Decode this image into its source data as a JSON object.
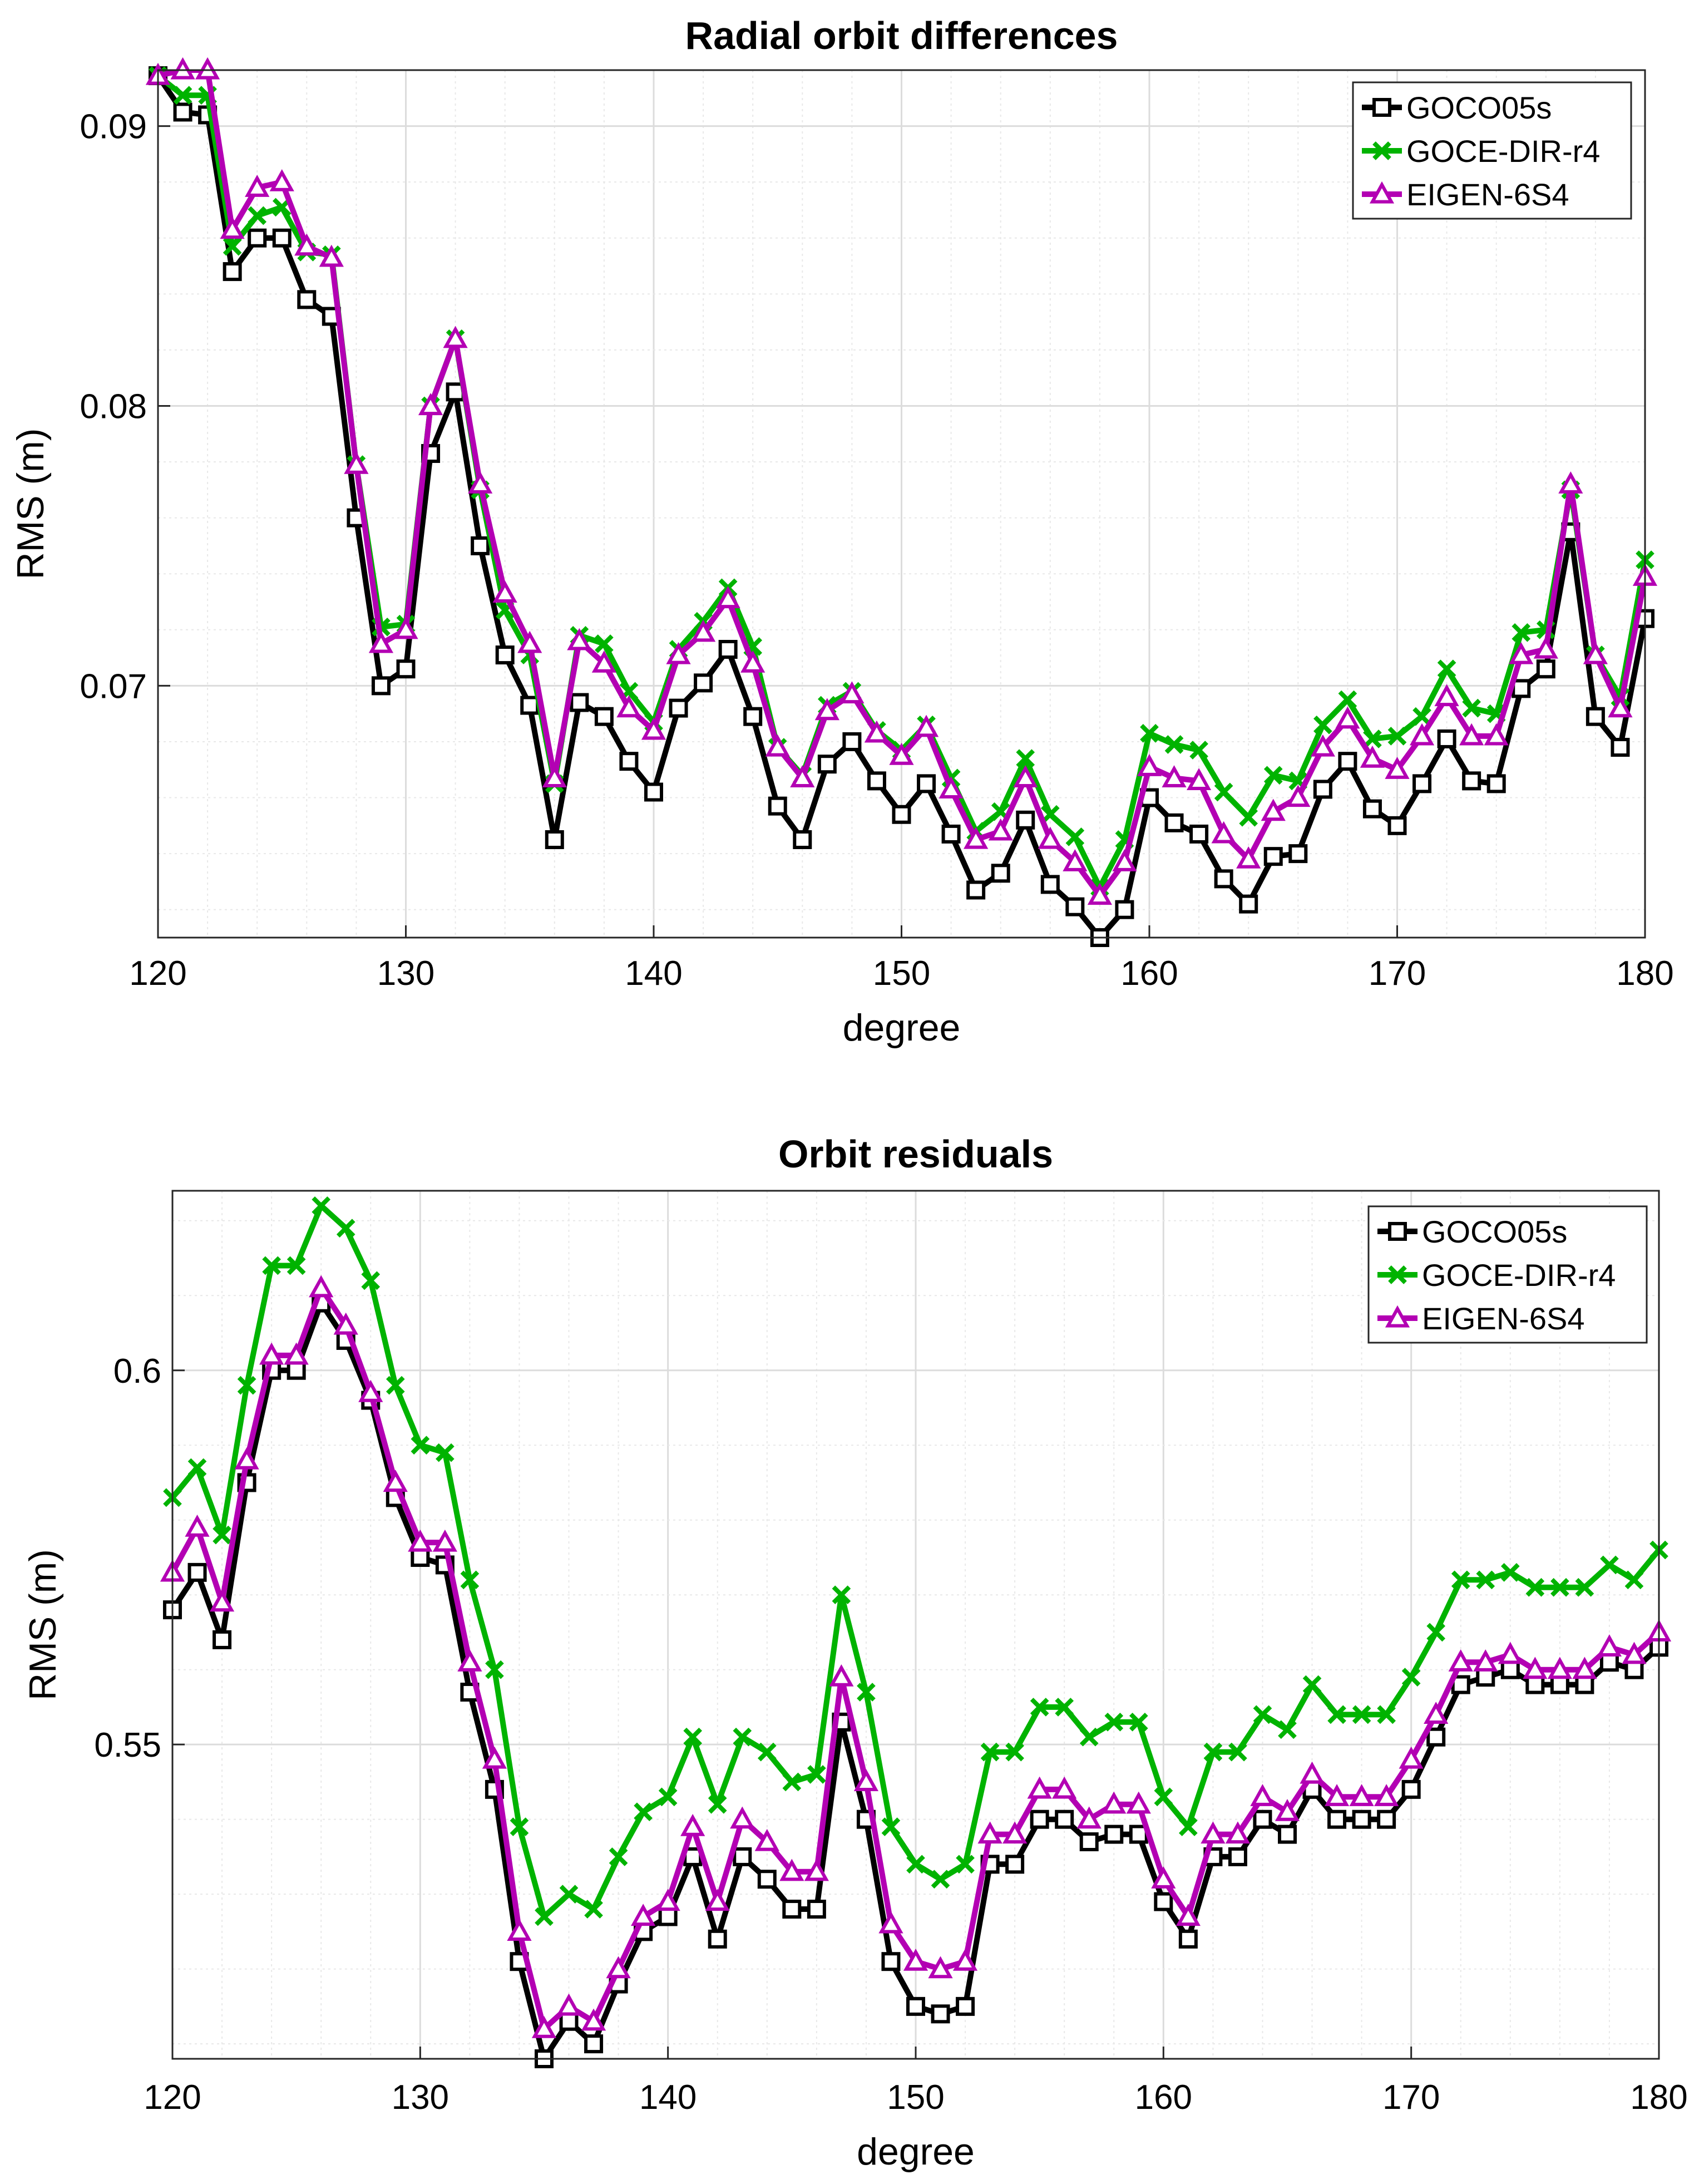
{
  "chart_data": [
    {
      "type": "line",
      "title": "Radial orbit differences",
      "xlabel": "degree",
      "ylabel": "RMS (m)",
      "xlim": [
        120,
        180
      ],
      "ylim": [
        0.061,
        0.092
      ],
      "xticks": [
        120,
        130,
        140,
        150,
        160,
        170,
        180
      ],
      "xtick_labels": [
        "120",
        "130",
        "140",
        "150",
        "160",
        "170",
        "180"
      ],
      "yticks": [
        0.07,
        0.08,
        0.09
      ],
      "ytick_labels": [
        "0.07",
        "0.08",
        "0.09"
      ],
      "grid": true,
      "legend_position": "top-right",
      "series": [
        {
          "name": "GOCO05s",
          "color": "#000000",
          "marker": "square",
          "x": [
            120,
            121,
            122,
            123,
            124,
            125,
            126,
            127,
            128,
            129,
            130,
            131,
            132,
            133,
            134,
            135,
            136,
            137,
            138,
            139,
            140,
            141,
            142,
            143,
            144,
            145,
            146,
            147,
            148,
            149,
            150,
            151,
            152,
            153,
            154,
            155,
            156,
            157,
            158,
            159,
            160,
            161,
            162,
            163,
            164,
            165,
            166,
            167,
            168,
            169,
            170,
            171,
            172,
            173,
            174,
            175,
            176,
            177,
            178,
            179,
            180
          ],
          "values": [
            0.0918,
            0.0905,
            0.0904,
            0.0848,
            0.086,
            0.086,
            0.0838,
            0.0832,
            0.076,
            0.07,
            0.0706,
            0.0783,
            0.0805,
            0.075,
            0.0711,
            0.0693,
            0.0645,
            0.0694,
            0.0689,
            0.0673,
            0.0662,
            0.0692,
            0.0701,
            0.0713,
            0.0689,
            0.0657,
            0.0645,
            0.0672,
            0.068,
            0.0666,
            0.0654,
            0.0665,
            0.0647,
            0.0627,
            0.0633,
            0.0652,
            0.0629,
            0.0621,
            0.061,
            0.062,
            0.066,
            0.0651,
            0.0647,
            0.0631,
            0.0622,
            0.0639,
            0.064,
            0.0663,
            0.0673,
            0.0656,
            0.065,
            0.0665,
            0.0681,
            0.0666,
            0.0665,
            0.0699,
            0.0706,
            0.0755,
            0.0689,
            0.0678,
            0.0724
          ]
        },
        {
          "name": "GOCE-DIR-r4",
          "color": "#00b300",
          "marker": "x",
          "x": [
            120,
            121,
            122,
            123,
            124,
            125,
            126,
            127,
            128,
            129,
            130,
            131,
            132,
            133,
            134,
            135,
            136,
            137,
            138,
            139,
            140,
            141,
            142,
            143,
            144,
            145,
            146,
            147,
            148,
            149,
            150,
            151,
            152,
            153,
            154,
            155,
            156,
            157,
            158,
            159,
            160,
            161,
            162,
            163,
            164,
            165,
            166,
            167,
            168,
            169,
            170,
            171,
            172,
            173,
            174,
            175,
            176,
            177,
            178,
            179,
            180
          ],
          "values": [
            0.0918,
            0.0911,
            0.0911,
            0.0857,
            0.0868,
            0.0871,
            0.0855,
            0.0854,
            0.0779,
            0.0721,
            0.0722,
            0.08,
            0.0824,
            0.077,
            0.0727,
            0.0711,
            0.0665,
            0.0718,
            0.0715,
            0.0698,
            0.0687,
            0.0713,
            0.0723,
            0.0735,
            0.0714,
            0.0678,
            0.0668,
            0.0693,
            0.0698,
            0.0684,
            0.0677,
            0.0686,
            0.0667,
            0.0648,
            0.0655,
            0.0674,
            0.0654,
            0.0646,
            0.0628,
            0.0645,
            0.0683,
            0.0679,
            0.0677,
            0.0662,
            0.0653,
            0.0668,
            0.0666,
            0.0686,
            0.0695,
            0.0681,
            0.0682,
            0.0689,
            0.0706,
            0.0692,
            0.069,
            0.0719,
            0.072,
            0.077,
            0.0711,
            0.0696,
            0.0745
          ]
        },
        {
          "name": "EIGEN-6S4",
          "color": "#b300b3",
          "marker": "triangle",
          "x": [
            120,
            121,
            122,
            123,
            124,
            125,
            126,
            127,
            128,
            129,
            130,
            131,
            132,
            133,
            134,
            135,
            136,
            137,
            138,
            139,
            140,
            141,
            142,
            143,
            144,
            145,
            146,
            147,
            148,
            149,
            150,
            151,
            152,
            153,
            154,
            155,
            156,
            157,
            158,
            159,
            160,
            161,
            162,
            163,
            164,
            165,
            166,
            167,
            168,
            169,
            170,
            171,
            172,
            173,
            174,
            175,
            176,
            177,
            178,
            179,
            180
          ],
          "values": [
            0.0918,
            0.092,
            0.092,
            0.0863,
            0.0878,
            0.088,
            0.0857,
            0.0853,
            0.0779,
            0.0715,
            0.072,
            0.08,
            0.0824,
            0.0772,
            0.0733,
            0.0715,
            0.0667,
            0.0716,
            0.0708,
            0.0692,
            0.0684,
            0.0711,
            0.0719,
            0.0731,
            0.0708,
            0.0678,
            0.0667,
            0.0691,
            0.0697,
            0.0683,
            0.0675,
            0.0685,
            0.0663,
            0.0645,
            0.0648,
            0.0667,
            0.0645,
            0.0637,
            0.0625,
            0.0637,
            0.0671,
            0.0667,
            0.0666,
            0.0647,
            0.0638,
            0.0655,
            0.066,
            0.0678,
            0.0688,
            0.0674,
            0.067,
            0.0682,
            0.0696,
            0.0682,
            0.0682,
            0.0711,
            0.0713,
            0.0772,
            0.0711,
            0.0692,
            0.0739
          ]
        }
      ]
    },
    {
      "type": "line",
      "title": "Orbit residuals",
      "xlabel": "degree",
      "ylabel": "RMS (m)",
      "xlim": [
        120,
        180
      ],
      "ylim": [
        0.508,
        0.624
      ],
      "xticks": [
        120,
        130,
        140,
        150,
        160,
        170,
        180
      ],
      "xtick_labels": [
        "120",
        "130",
        "140",
        "150",
        "160",
        "170",
        "180"
      ],
      "yticks": [
        0.55,
        0.6
      ],
      "ytick_labels": [
        "0.55",
        "0.6"
      ],
      "grid": true,
      "legend_position": "top-right",
      "series": [
        {
          "name": "GOCO05s",
          "color": "#000000",
          "marker": "square",
          "x": [
            120,
            121,
            122,
            123,
            124,
            125,
            126,
            127,
            128,
            129,
            130,
            131,
            132,
            133,
            134,
            135,
            136,
            137,
            138,
            139,
            140,
            141,
            142,
            143,
            144,
            145,
            146,
            147,
            148,
            149,
            150,
            151,
            152,
            153,
            154,
            155,
            156,
            157,
            158,
            159,
            160,
            161,
            162,
            163,
            164,
            165,
            166,
            167,
            168,
            169,
            170,
            171,
            172,
            173,
            174,
            175,
            176,
            177,
            178,
            179,
            180
          ],
          "values": [
            0.568,
            0.573,
            0.564,
            0.585,
            0.6,
            0.6,
            0.609,
            0.604,
            0.596,
            0.583,
            0.575,
            0.574,
            0.557,
            0.544,
            0.521,
            0.508,
            0.513,
            0.51,
            0.518,
            0.525,
            0.527,
            0.535,
            0.524,
            0.535,
            0.532,
            0.528,
            0.528,
            0.553,
            0.54,
            0.521,
            0.515,
            0.514,
            0.515,
            0.534,
            0.534,
            0.54,
            0.54,
            0.537,
            0.538,
            0.538,
            0.529,
            0.524,
            0.535,
            0.535,
            0.54,
            0.538,
            0.544,
            0.54,
            0.54,
            0.54,
            0.544,
            0.551,
            0.558,
            0.559,
            0.56,
            0.558,
            0.558,
            0.558,
            0.561,
            0.56,
            0.563
          ]
        },
        {
          "name": "GOCE-DIR-r4",
          "color": "#00b300",
          "marker": "x",
          "x": [
            120,
            121,
            122,
            123,
            124,
            125,
            126,
            127,
            128,
            129,
            130,
            131,
            132,
            133,
            134,
            135,
            136,
            137,
            138,
            139,
            140,
            141,
            142,
            143,
            144,
            145,
            146,
            147,
            148,
            149,
            150,
            151,
            152,
            153,
            154,
            155,
            156,
            157,
            158,
            159,
            160,
            161,
            162,
            163,
            164,
            165,
            166,
            167,
            168,
            169,
            170,
            171,
            172,
            173,
            174,
            175,
            176,
            177,
            178,
            179,
            180
          ],
          "values": [
            0.583,
            0.587,
            0.578,
            0.598,
            0.614,
            0.614,
            0.622,
            0.619,
            0.612,
            0.598,
            0.59,
            0.589,
            0.572,
            0.56,
            0.539,
            0.527,
            0.53,
            0.528,
            0.535,
            0.541,
            0.543,
            0.551,
            0.542,
            0.551,
            0.549,
            0.545,
            0.546,
            0.57,
            0.557,
            0.539,
            0.534,
            0.532,
            0.534,
            0.549,
            0.549,
            0.555,
            0.555,
            0.551,
            0.553,
            0.553,
            0.543,
            0.539,
            0.549,
            0.549,
            0.554,
            0.552,
            0.558,
            0.554,
            0.554,
            0.554,
            0.559,
            0.565,
            0.572,
            0.572,
            0.573,
            0.571,
            0.571,
            0.571,
            0.574,
            0.572,
            0.576
          ]
        },
        {
          "name": "EIGEN-6S4",
          "color": "#b300b3",
          "marker": "triangle",
          "x": [
            120,
            121,
            122,
            123,
            124,
            125,
            126,
            127,
            128,
            129,
            130,
            131,
            132,
            133,
            134,
            135,
            136,
            137,
            138,
            139,
            140,
            141,
            142,
            143,
            144,
            145,
            146,
            147,
            148,
            149,
            150,
            151,
            152,
            153,
            154,
            155,
            156,
            157,
            158,
            159,
            160,
            161,
            162,
            163,
            164,
            165,
            166,
            167,
            168,
            169,
            170,
            171,
            172,
            173,
            174,
            175,
            176,
            177,
            178,
            179,
            180
          ],
          "values": [
            0.573,
            0.579,
            0.569,
            0.588,
            0.602,
            0.602,
            0.611,
            0.606,
            0.597,
            0.585,
            0.577,
            0.577,
            0.561,
            0.548,
            0.525,
            0.512,
            0.515,
            0.513,
            0.52,
            0.527,
            0.529,
            0.539,
            0.529,
            0.54,
            0.537,
            0.533,
            0.533,
            0.559,
            0.545,
            0.526,
            0.521,
            0.52,
            0.521,
            0.538,
            0.538,
            0.544,
            0.544,
            0.54,
            0.542,
            0.542,
            0.532,
            0.527,
            0.538,
            0.538,
            0.543,
            0.541,
            0.546,
            0.543,
            0.543,
            0.543,
            0.548,
            0.554,
            0.561,
            0.561,
            0.562,
            0.56,
            0.56,
            0.56,
            0.563,
            0.562,
            0.565
          ]
        }
      ]
    }
  ]
}
